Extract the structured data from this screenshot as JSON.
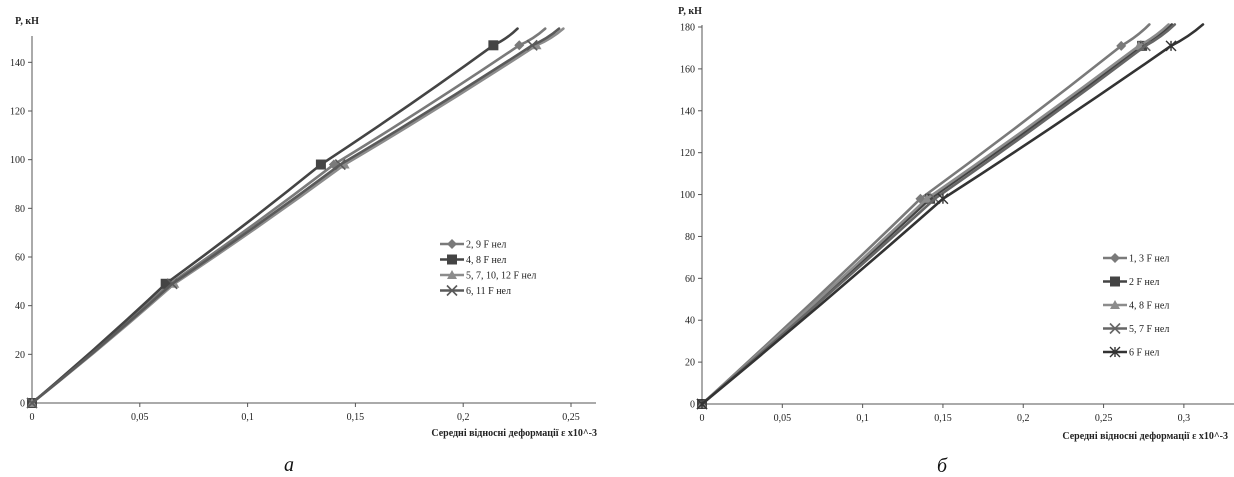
{
  "chart_data": [
    {
      "type": "line",
      "ylabel": "P, кН",
      "xlabel": "Середні відносні деформації ε х10^-3",
      "caption": "а",
      "xlim": [
        0,
        0.25
      ],
      "ylim": [
        0,
        150
      ],
      "x_ticks": [
        "0",
        "0,05",
        "0,1",
        "0,15",
        "0,2",
        "0,25"
      ],
      "x_tick_values": [
        0,
        0.05,
        0.1,
        0.15,
        0.2,
        0.25
      ],
      "y_ticks": [
        "0",
        "20",
        "40",
        "60",
        "80",
        "100",
        "120",
        "140"
      ],
      "y_tick_values": [
        0,
        20,
        40,
        60,
        80,
        100,
        120,
        140
      ],
      "grid": false,
      "legend_position": "right",
      "series": [
        {
          "name": "2, 9 F нел",
          "color": "#7a7a7a",
          "marker": "diamond",
          "x": [
            0,
            0.064,
            0.14,
            0.226
          ],
          "y": [
            0,
            49,
            98,
            147
          ]
        },
        {
          "name": "4, 8 F нел",
          "color": "#444444",
          "marker": "square",
          "x": [
            0,
            0.062,
            0.134,
            0.214
          ],
          "y": [
            0,
            49,
            98,
            147
          ]
        },
        {
          "name": "5, 7, 10, 12 F нел",
          "color": "#8c8c8c",
          "marker": "triangle",
          "x": [
            0,
            0.066,
            0.145,
            0.234
          ],
          "y": [
            0,
            49,
            98,
            147
          ]
        },
        {
          "name": "6, 11 F нел",
          "color": "#5a5a5a",
          "marker": "x",
          "x": [
            0,
            0.065,
            0.143,
            0.232
          ],
          "y": [
            0,
            49,
            98,
            147
          ]
        }
      ]
    },
    {
      "type": "line",
      "ylabel": "P, кН",
      "xlabel": "Середні відносні деформації ε х10^-3",
      "caption": "б",
      "xlim": [
        0,
        0.32
      ],
      "ylim": [
        0,
        180
      ],
      "x_ticks": [
        "0",
        "0,05",
        "0,1",
        "0,15",
        "0,2",
        "0,25",
        "0,3"
      ],
      "x_tick_values": [
        0,
        0.05,
        0.1,
        0.15,
        0.2,
        0.25,
        0.3
      ],
      "y_ticks": [
        "0",
        "20",
        "40",
        "60",
        "80",
        "100",
        "120",
        "140",
        "160",
        "180"
      ],
      "y_tick_values": [
        0,
        20,
        40,
        60,
        80,
        100,
        120,
        140,
        160,
        180
      ],
      "grid": false,
      "legend_position": "right",
      "series": [
        {
          "name": "1, 3 F нел",
          "color": "#7a7a7a",
          "marker": "diamond",
          "x": [
            0,
            0.136,
            0.261
          ],
          "y": [
            0,
            98,
            171
          ]
        },
        {
          "name": "2 F нел",
          "color": "#444444",
          "marker": "square",
          "x": [
            0,
            0.142,
            0.274
          ],
          "y": [
            0,
            98,
            171
          ]
        },
        {
          "name": "4, 8 F нел",
          "color": "#8c8c8c",
          "marker": "triangle",
          "x": [
            0,
            0.14,
            0.272
          ],
          "y": [
            0,
            98,
            171
          ]
        },
        {
          "name": "5, 7 F нел",
          "color": "#666666",
          "marker": "x",
          "x": [
            0,
            0.145,
            0.276
          ],
          "y": [
            0,
            98,
            171
          ]
        },
        {
          "name": "6 F нел",
          "color": "#333333",
          "marker": "star",
          "x": [
            0,
            0.15,
            0.292
          ],
          "y": [
            0,
            98,
            171
          ]
        }
      ]
    }
  ]
}
